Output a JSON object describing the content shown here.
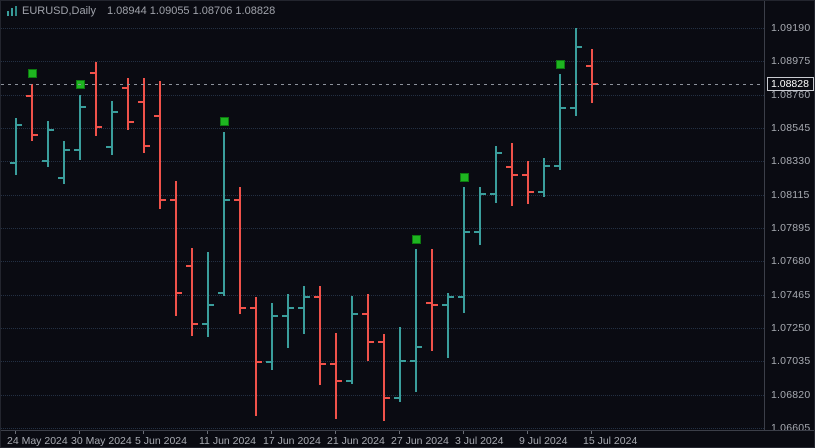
{
  "window": {
    "title": "EURUSD,Daily",
    "ohlc_line": "1.08944 1.09055 1.08706 1.08828"
  },
  "colors": {
    "background": "#0a0b12",
    "up_bar": "#3a9e9c",
    "down_bar": "#f0524a",
    "marker_green": "#1eb520",
    "grid": "#233044",
    "axis_text": "#a8abb2",
    "price_line": "#8d929c"
  },
  "chart_data": {
    "type": "ohlc-bar",
    "symbol": "EURUSD",
    "timeframe": "Daily",
    "title": "EURUSD,Daily 1.08944 1.09055 1.08706 1.08828",
    "legend_position": "none",
    "grid": "horizontal-dotted",
    "current_price": 1.08828,
    "current_price_label": "1.08828",
    "y_axis": {
      "max": 1.0919,
      "min": 1.06605,
      "labels": [
        "1.09190",
        "1.08975",
        "1.08760",
        "1.08545",
        "1.08330",
        "1.08115",
        "1.07895",
        "1.07680",
        "1.07465",
        "1.07250",
        "1.07035",
        "1.06820",
        "1.06605"
      ]
    },
    "x_axis": {
      "tick_every": 4,
      "labels": [
        "24 May 2024",
        "30 May 2024",
        "5 Jun 2024",
        "11 Jun 2024",
        "17 Jun 2024",
        "21 Jun 2024",
        "27 Jun 2024",
        "3 Jul 2024",
        "9 Jul 2024",
        "15 Jul 2024"
      ]
    },
    "bars": [
      {
        "date": "24 May 2024",
        "o": 1.0832,
        "h": 1.0861,
        "l": 1.0824,
        "c": 1.0856
      },
      {
        "date": "27 May 2024",
        "o": 1.0875,
        "h": 1.0883,
        "l": 1.0846,
        "c": 1.085
      },
      {
        "date": "28 May 2024",
        "o": 1.0833,
        "h": 1.0859,
        "l": 1.0829,
        "c": 1.0853
      },
      {
        "date": "29 May 2024",
        "o": 1.0822,
        "h": 1.0846,
        "l": 1.0818,
        "c": 1.084
      },
      {
        "date": "30 May 2024",
        "o": 1.084,
        "h": 1.0876,
        "l": 1.0834,
        "c": 1.0868
      },
      {
        "date": "31 May 2024",
        "o": 1.089,
        "h": 1.0897,
        "l": 1.0849,
        "c": 1.0855
      },
      {
        "date": "3 Jun 2024",
        "o": 1.0842,
        "h": 1.0872,
        "l": 1.0837,
        "c": 1.0865
      },
      {
        "date": "4 Jun 2024",
        "o": 1.088,
        "h": 1.0887,
        "l": 1.0853,
        "c": 1.0858
      },
      {
        "date": "5 Jun 2024",
        "o": 1.0871,
        "h": 1.0887,
        "l": 1.0838,
        "c": 1.0843
      },
      {
        "date": "6 Jun 2024",
        "o": 1.0862,
        "h": 1.0885,
        "l": 1.0802,
        "c": 1.0808
      },
      {
        "date": "7 Jun 2024",
        "o": 1.0808,
        "h": 1.082,
        "l": 1.0733,
        "c": 1.0748
      },
      {
        "date": "10 Jun 2024",
        "o": 1.0765,
        "h": 1.0777,
        "l": 1.072,
        "c": 1.0728
      },
      {
        "date": "11 Jun 2024",
        "o": 1.0728,
        "h": 1.0774,
        "l": 1.0719,
        "c": 1.074
      },
      {
        "date": "12 Jun 2024",
        "o": 1.0748,
        "h": 1.0852,
        "l": 1.0746,
        "c": 1.0808
      },
      {
        "date": "13 Jun 2024",
        "o": 1.0808,
        "h": 1.0816,
        "l": 1.0734,
        "c": 1.0738
      },
      {
        "date": "14 Jun 2024",
        "o": 1.0738,
        "h": 1.0745,
        "l": 1.0668,
        "c": 1.0703
      },
      {
        "date": "17 Jun 2024",
        "o": 1.0703,
        "h": 1.0741,
        "l": 1.0698,
        "c": 1.0733
      },
      {
        "date": "18 Jun 2024",
        "o": 1.0733,
        "h": 1.0747,
        "l": 1.0712,
        "c": 1.0738
      },
      {
        "date": "19 Jun 2024",
        "o": 1.0738,
        "h": 1.0752,
        "l": 1.0721,
        "c": 1.0745
      },
      {
        "date": "20 Jun 2024",
        "o": 1.0745,
        "h": 1.0752,
        "l": 1.0688,
        "c": 1.0702
      },
      {
        "date": "21 Jun 2024",
        "o": 1.0702,
        "h": 1.0722,
        "l": 1.0666,
        "c": 1.0691
      },
      {
        "date": "24 Jun 2024",
        "o": 1.0691,
        "h": 1.0746,
        "l": 1.0689,
        "c": 1.0734
      },
      {
        "date": "25 Jun 2024",
        "o": 1.0734,
        "h": 1.0747,
        "l": 1.0704,
        "c": 1.0716
      },
      {
        "date": "26 Jun 2024",
        "o": 1.0716,
        "h": 1.0721,
        "l": 1.0665,
        "c": 1.068
      },
      {
        "date": "27 Jun 2024",
        "o": 1.068,
        "h": 1.0726,
        "l": 1.0677,
        "c": 1.0704
      },
      {
        "date": "28 Jun 2024",
        "o": 1.0704,
        "h": 1.0776,
        "l": 1.0684,
        "c": 1.0713
      },
      {
        "date": "1 Jul 2024",
        "o": 1.0741,
        "h": 1.0776,
        "l": 1.071,
        "c": 1.074
      },
      {
        "date": "2 Jul 2024",
        "o": 1.074,
        "h": 1.0748,
        "l": 1.0706,
        "c": 1.0745
      },
      {
        "date": "3 Jul 2024",
        "o": 1.0745,
        "h": 1.0816,
        "l": 1.0735,
        "c": 1.0787
      },
      {
        "date": "4 Jul 2024",
        "o": 1.0787,
        "h": 1.0816,
        "l": 1.0779,
        "c": 1.0812
      },
      {
        "date": "5 Jul 2024",
        "o": 1.0812,
        "h": 1.0843,
        "l": 1.0806,
        "c": 1.0838
      },
      {
        "date": "8 Jul 2024",
        "o": 1.0829,
        "h": 1.0845,
        "l": 1.0804,
        "c": 1.0824
      },
      {
        "date": "9 Jul 2024",
        "o": 1.0824,
        "h": 1.0833,
        "l": 1.0805,
        "c": 1.0813
      },
      {
        "date": "10 Jul 2024",
        "o": 1.0813,
        "h": 1.0835,
        "l": 1.081,
        "c": 1.083
      },
      {
        "date": "11 Jul 2024",
        "o": 1.083,
        "h": 1.0889,
        "l": 1.0827,
        "c": 1.0867
      },
      {
        "date": "12 Jul 2024",
        "o": 1.0867,
        "h": 1.0919,
        "l": 1.0862,
        "c": 1.0907
      },
      {
        "date": "15 Jul 2024",
        "o": 1.08944,
        "h": 1.09055,
        "l": 1.08706,
        "c": 1.08828
      }
    ],
    "markers": [
      {
        "bar": 1,
        "price": 1.0889,
        "shape": "green-square"
      },
      {
        "bar": 4,
        "price": 1.0882,
        "shape": "green-square"
      },
      {
        "bar": 13,
        "price": 1.0858,
        "shape": "green-square"
      },
      {
        "bar": 25,
        "price": 1.0782,
        "shape": "green-square"
      },
      {
        "bar": 28,
        "price": 1.0822,
        "shape": "green-square"
      },
      {
        "bar": 34,
        "price": 1.0895,
        "shape": "green-square"
      }
    ]
  }
}
